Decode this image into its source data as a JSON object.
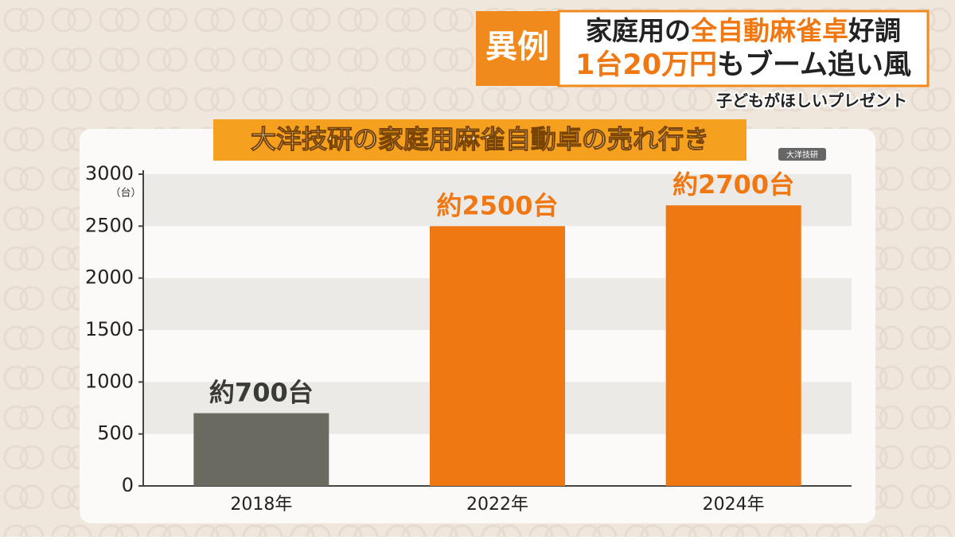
{
  "headline": {
    "tag": "異例",
    "line1": [
      "家庭用の",
      "全自動麻雀卓",
      "好調"
    ],
    "line2": [
      "1台20万円",
      "もブーム追い風"
    ],
    "subtitle": "子どもがほしいプレゼント"
  },
  "chart_data": {
    "type": "bar",
    "title": "大洋技研の家庭用麻雀自動卓の売れ行き",
    "source": "大洋技研",
    "y_unit": "（台）",
    "categories": [
      "2018年",
      "2022年",
      "2024年"
    ],
    "values": [
      700,
      2500,
      2700
    ],
    "value_labels": [
      "約700台",
      "約2500台",
      "約2700台"
    ],
    "colors": [
      "#6b6a61",
      "#f07812",
      "#f07812"
    ],
    "ylim": [
      0,
      3000
    ],
    "yticks": [
      0,
      500,
      1000,
      1500,
      2000,
      2500,
      3000
    ],
    "grid": true
  }
}
